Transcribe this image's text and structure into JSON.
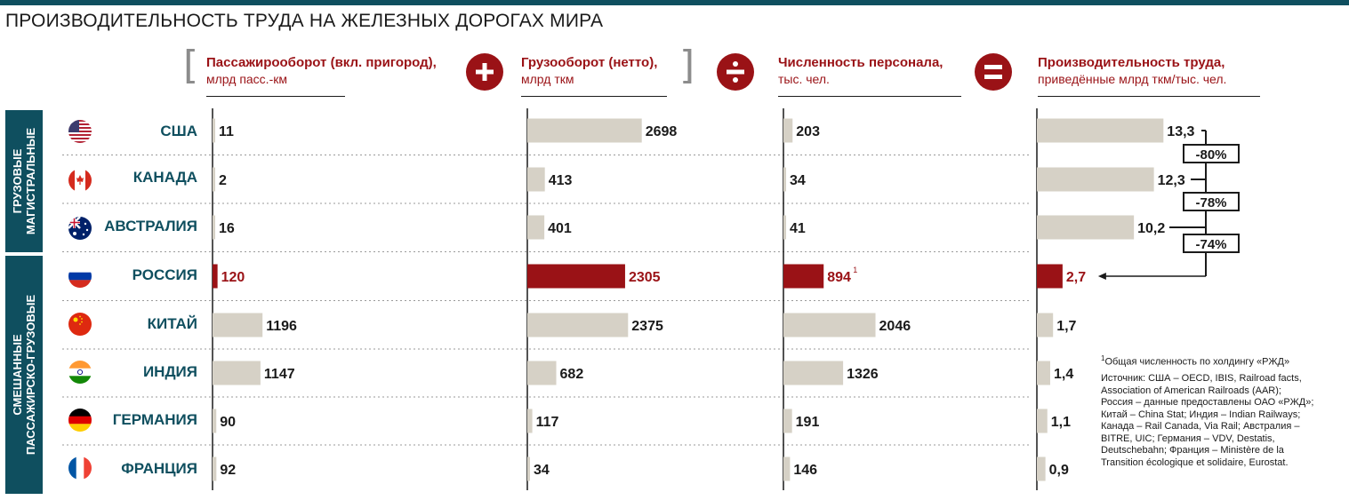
{
  "title": "ПРОИЗВОДИТЕЛЬНОСТЬ ТРУДА НА ЖЕЛЕЗНЫХ ДОРОГАХ МИРА",
  "columns": [
    {
      "title": "Пассажирооборот (вкл. пригород),",
      "sub": "млрд пасс.-км"
    },
    {
      "title": "Грузооборот (нетто),",
      "sub": "млрд ткм"
    },
    {
      "title": "Численность персонала,",
      "sub": "тыс. чел."
    },
    {
      "title": "Производительность труда,",
      "sub": "приведённые млрд ткм/тыс. чел."
    }
  ],
  "operators": [
    "+",
    "÷",
    "="
  ],
  "groups": [
    {
      "label_line1": "ГРУЗОВЫЕ",
      "label_line2": "МАГИСТРАЛЬНЫЕ"
    },
    {
      "label_line1": "СМЕШАННЫЕ",
      "label_line2": "ПАССАЖИРСКО-ГРУЗОВЫЕ"
    }
  ],
  "countries": [
    {
      "name": "США",
      "flag": "flag-usa-icon"
    },
    {
      "name": "КАНАДА",
      "flag": "flag-canada-icon"
    },
    {
      "name": "АВСТРАЛИЯ",
      "flag": "flag-australia-icon"
    },
    {
      "name": "РОССИЯ",
      "flag": "flag-russia-icon"
    },
    {
      "name": "КИТАЙ",
      "flag": "flag-china-icon"
    },
    {
      "name": "ИНДИЯ",
      "flag": "flag-india-icon"
    },
    {
      "name": "ГЕРМАНИЯ",
      "flag": "flag-germany-icon"
    },
    {
      "name": "ФРАНЦИЯ",
      "flag": "flag-france-icon"
    }
  ],
  "chart_data": {
    "type": "bar",
    "categories": [
      "США",
      "КАНАДА",
      "АВСТРАЛИЯ",
      "РОССИЯ",
      "КИТАЙ",
      "ИНДИЯ",
      "ГЕРМАНИЯ",
      "ФРАНЦИЯ"
    ],
    "highlight": "РОССИЯ",
    "series": [
      {
        "name": "Пассажирооборот (вкл. пригород), млрд пасс.-км",
        "values": [
          11,
          2,
          16,
          120,
          1196,
          1147,
          90,
          92
        ],
        "labels": [
          "11",
          "2",
          "16",
          "120",
          "1196",
          "1147",
          "90",
          "92"
        ]
      },
      {
        "name": "Грузооборот (нетто), млрд ткм",
        "values": [
          2698,
          413,
          401,
          2305,
          2375,
          682,
          117,
          34
        ],
        "labels": [
          "2698",
          "413",
          "401",
          "2305",
          "2375",
          "682",
          "117",
          "34"
        ]
      },
      {
        "name": "Численность персонала, тыс. чел.",
        "values": [
          203,
          34,
          41,
          894,
          2046,
          1326,
          191,
          146
        ],
        "labels": [
          "203",
          "34",
          "41",
          "894",
          "2046",
          "1326",
          "191",
          "146"
        ],
        "footnote_mark": {
          "row": 3,
          "mark": "1"
        }
      },
      {
        "name": "Производительность труда, приведённые млрд ткм/тыс. чел.",
        "values": [
          13.3,
          12.3,
          10.2,
          2.7,
          1.7,
          1.4,
          1.1,
          0.9
        ],
        "labels": [
          "13,3",
          "12,3",
          "10,2",
          "2,7",
          "1,7",
          "1,4",
          "1,1",
          "0,9"
        ]
      }
    ],
    "comparisons": [
      {
        "from": "США",
        "to": "РОССИЯ",
        "label": "-80%"
      },
      {
        "from": "КАНАДА",
        "to": "РОССИЯ",
        "label": "-78%"
      },
      {
        "from": "АВСТРАЛИЯ",
        "to": "РОССИЯ",
        "label": "-74%"
      }
    ]
  },
  "footnote": "Общая численность по холдингу «РЖД»",
  "footnote_mark": "1",
  "sources": [
    "Источник: США – OECD, IBIS, Railroad facts,",
    "Association of American Railroads (AAR);",
    "Россия – данные предоставлены ОАО «РЖД»;",
    "Китай – China Stat; Индия – Indian Railways;",
    "Канада –  Rail Canada, Via Rail; Австралия –",
    "BITRE, UIC; Германия – VDV, Destatis,",
    "Deutschebahn; Франция – Ministère de la",
    "Transition écologique et solidaire, Eurostat."
  ],
  "colors": {
    "accent": "#9a1216",
    "bar": "#d6d1c6",
    "teal": "#0f4f5f",
    "text": "#1a1a1a"
  }
}
